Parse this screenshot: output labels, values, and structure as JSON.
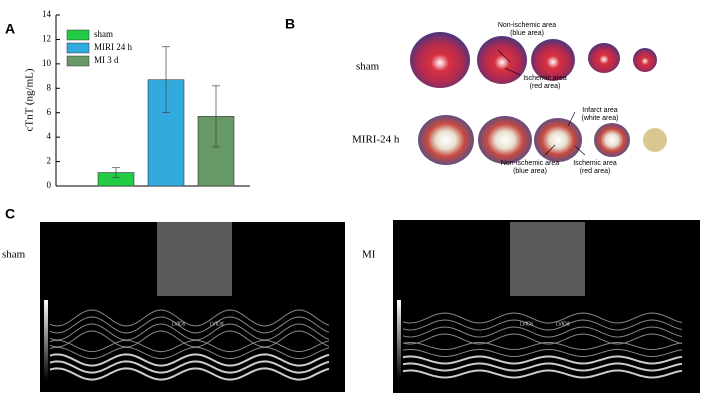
{
  "chart_data": {
    "type": "bar",
    "ylabel": "cTnT (ng/mL)",
    "categories": [
      "sham",
      "MIRI 24 h",
      "MI 3 d"
    ],
    "values": [
      1.1,
      8.7,
      5.7
    ],
    "errors": [
      0.4,
      2.7,
      2.5
    ],
    "colors": [
      "#22cc44",
      "#33aadd",
      "#669966"
    ],
    "ylim": [
      0,
      14
    ],
    "yticks": [
      0,
      2,
      4,
      6,
      8,
      10,
      12,
      14
    ],
    "legend": "upper left"
  },
  "panels": [
    "A",
    "B",
    "C"
  ],
  "panel_b": {
    "rows": [
      "sham",
      "MIRI-24 h"
    ],
    "annotations": [
      {
        "lines": [
          "Non-ischemic area",
          "(blue area)"
        ]
      },
      {
        "lines": [
          "Ischemic area",
          "(red area)"
        ]
      },
      {
        "lines": [
          "Infarct area",
          "(white area)"
        ]
      },
      {
        "lines": [
          "Non-ischemic area",
          "(blue area)"
        ]
      },
      {
        "lines": [
          "Ischemic area",
          "(red area)"
        ]
      }
    ]
  },
  "panel_c": {
    "rows": [
      "sham",
      "MI"
    ],
    "measures": [
      "LVIDs",
      "LVIDd"
    ]
  }
}
